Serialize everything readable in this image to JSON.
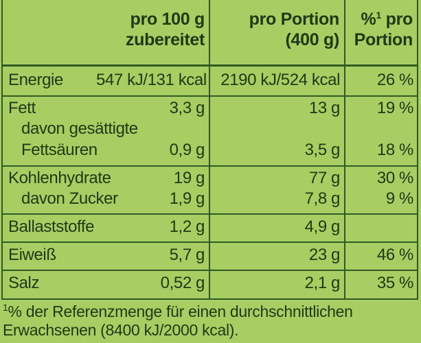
{
  "header": {
    "col1_line1": "pro 100 g",
    "col1_line2": "zubereitet",
    "col2_line1": "pro Portion",
    "col2_line2": "(400 g)",
    "col3_sup": "1",
    "col3_line1_pre": "%",
    "col3_line1_post": " pro",
    "col3_line2": "Portion"
  },
  "rows": [
    {
      "label": "Energie",
      "per100": "547 kJ/131 kcal",
      "portion": "2190 kJ/524 kcal",
      "pct": "26 %"
    },
    {
      "label": "Fett",
      "per100": "3,3 g",
      "portion": "13 g",
      "pct": "19 %"
    },
    {
      "label": "davon gesättigte",
      "per100": "",
      "portion": "",
      "pct": ""
    },
    {
      "label": "Fettsäuren",
      "per100": "0,9 g",
      "portion": "3,5 g",
      "pct": "18 %"
    },
    {
      "label": "Kohlenhydrate",
      "per100": "19 g",
      "portion": "77 g",
      "pct": "30 %"
    },
    {
      "label": "davon Zucker",
      "per100": "1,9 g",
      "portion": "7,8 g",
      "pct": "9 %"
    },
    {
      "label": "Ballaststoffe",
      "per100": "1,2 g",
      "portion": "4,9 g",
      "pct": ""
    },
    {
      "label": "Eiweiß",
      "per100": "5,7 g",
      "portion": "23 g",
      "pct": "46 %"
    },
    {
      "label": "Salz",
      "per100": "0,52 g",
      "portion": "2,1 g",
      "pct": "35 %"
    }
  ],
  "footnote": {
    "sup": "1",
    "line1": "% der Referenzmenge für einen durchschnittlichen",
    "line2": "Erwachsenen (8400 kJ/2000 kcal)."
  },
  "colors": {
    "background": "#a8cd63",
    "lines": "#2f5a22",
    "text": "#1d3a17"
  }
}
